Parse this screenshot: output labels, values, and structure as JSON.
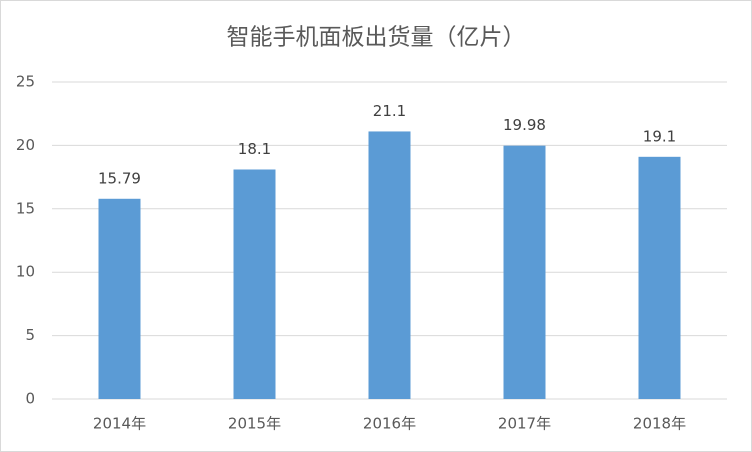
{
  "chart_data": {
    "type": "bar",
    "title": "智能手机面板出货量（亿片）",
    "categories": [
      "2014年",
      "2015年",
      "2016年",
      "2017年",
      "2018年"
    ],
    "values": [
      15.79,
      18.1,
      21.1,
      19.98,
      19.1
    ],
    "color": "#5b9bd5",
    "ylim": [
      0,
      25
    ],
    "yticks": [
      0,
      5,
      10,
      15,
      20,
      25
    ],
    "grid": true
  }
}
